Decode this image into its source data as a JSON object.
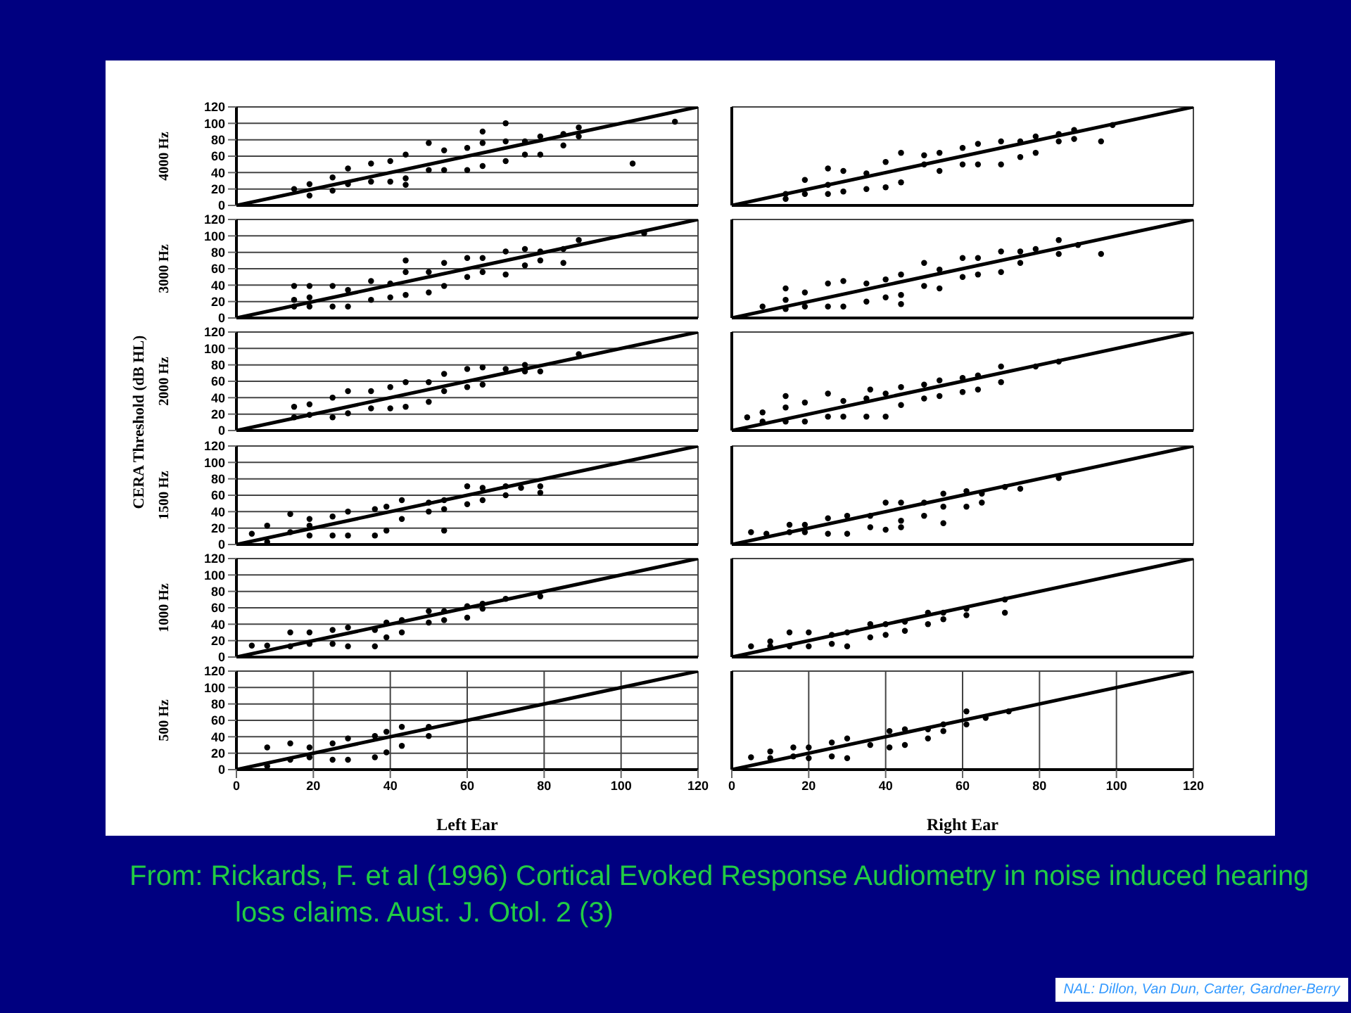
{
  "chart_data": [
    {
      "type": "scatter",
      "ylabel": "4000 Hz",
      "tick_labels": "y",
      "xlim": [
        0,
        120
      ],
      "xticks": [
        0,
        20,
        40,
        60,
        80,
        100,
        120
      ],
      "ylim": [
        0,
        120
      ],
      "yticks": [
        0,
        20,
        40,
        60,
        80,
        100,
        120
      ],
      "grid": true,
      "annotations": [
        "CERA Threshold (dB HL)",
        "From: Rickards, F. et al (1996) Cortical Evoked Response Audiometry in noise induced hearing loss claims. Aust. J. Otol. 2 (3)",
        "NAL: Dillon, Van Dun, Carter, Gardner-Berry"
      ],
      "series": [
        {
          "type": "scatter",
          "marker": "circle",
          "color": "#000000",
          "x": [
            15,
            19,
            19,
            25,
            25,
            29,
            29,
            35,
            35,
            40,
            40,
            44,
            44,
            44,
            50,
            50,
            54,
            54,
            60,
            60,
            64,
            64,
            64,
            70,
            70,
            70,
            75,
            75,
            79,
            79,
            85,
            85,
            89,
            89,
            103,
            114
          ],
          "values": [
            20,
            26,
            12,
            34,
            18,
            45,
            26,
            51,
            29,
            54,
            29,
            62,
            25,
            33,
            76,
            43,
            67,
            43,
            70,
            43,
            90,
            76,
            48,
            100,
            78,
            54,
            78,
            62,
            84,
            62,
            87,
            73,
            95,
            84,
            51,
            102
          ]
        },
        {
          "type": "line",
          "marker": "none",
          "color": "#000000",
          "x": [
            0,
            120
          ],
          "values": [
            0,
            120
          ]
        }
      ]
    },
    {
      "type": "scatter",
      "tick_labels": false,
      "xlim": [
        0,
        120
      ],
      "xticks": [
        0,
        20,
        40,
        60,
        80,
        100,
        120
      ],
      "ylim": [
        0,
        120
      ],
      "yticks": [
        0,
        20,
        40,
        60,
        80,
        100,
        120
      ],
      "grid": true,
      "series": [
        {
          "type": "scatter",
          "marker": "circle",
          "color": "#000000",
          "x": [
            14,
            14,
            19,
            19,
            25,
            25,
            25,
            29,
            29,
            35,
            35,
            40,
            40,
            44,
            44,
            50,
            50,
            54,
            54,
            60,
            60,
            64,
            64,
            70,
            70,
            75,
            75,
            79,
            79,
            85,
            85,
            89,
            89,
            96,
            99
          ],
          "values": [
            14,
            8,
            31,
            14,
            45,
            25,
            14,
            42,
            17,
            39,
            20,
            53,
            22,
            64,
            28,
            61,
            50,
            64,
            42,
            70,
            50,
            75,
            50,
            78,
            50,
            78,
            59,
            84,
            64,
            87,
            78,
            92,
            81,
            78,
            98
          ]
        },
        {
          "type": "line",
          "marker": "none",
          "color": "#000000",
          "x": [
            0,
            120
          ],
          "values": [
            0,
            120
          ]
        }
      ]
    },
    {
      "type": "scatter",
      "ylabel": "3000 Hz",
      "tick_labels": "y",
      "xlim": [
        0,
        120
      ],
      "xticks": [
        0,
        20,
        40,
        60,
        80,
        100,
        120
      ],
      "ylim": [
        0,
        120
      ],
      "yticks": [
        0,
        20,
        40,
        60,
        80,
        100,
        120
      ],
      "grid": true,
      "series": [
        {
          "type": "scatter",
          "marker": "circle",
          "color": "#000000",
          "x": [
            15,
            15,
            15,
            19,
            19,
            19,
            25,
            25,
            29,
            29,
            35,
            35,
            40,
            40,
            44,
            44,
            44,
            50,
            50,
            54,
            54,
            60,
            60,
            64,
            64,
            70,
            70,
            75,
            75,
            79,
            79,
            85,
            85,
            89,
            106
          ],
          "values": [
            39,
            22,
            14,
            39,
            25,
            14,
            39,
            14,
            34,
            14,
            45,
            22,
            42,
            25,
            70,
            56,
            28,
            56,
            31,
            67,
            39,
            73,
            50,
            73,
            56,
            81,
            53,
            84,
            64,
            70,
            81,
            67,
            84,
            95,
            103
          ]
        },
        {
          "type": "line",
          "marker": "none",
          "color": "#000000",
          "x": [
            0,
            120
          ],
          "values": [
            0,
            120
          ]
        }
      ]
    },
    {
      "type": "scatter",
      "tick_labels": false,
      "xlim": [
        0,
        120
      ],
      "xticks": [
        0,
        20,
        40,
        60,
        80,
        100,
        120
      ],
      "ylim": [
        0,
        120
      ],
      "yticks": [
        0,
        20,
        40,
        60,
        80,
        100,
        120
      ],
      "grid": true,
      "series": [
        {
          "type": "scatter",
          "marker": "circle",
          "color": "#000000",
          "x": [
            8,
            14,
            14,
            14,
            19,
            19,
            25,
            25,
            29,
            29,
            35,
            35,
            40,
            40,
            44,
            44,
            44,
            50,
            50,
            54,
            54,
            60,
            60,
            64,
            64,
            70,
            70,
            75,
            75,
            79,
            85,
            85,
            90,
            96
          ],
          "values": [
            14,
            36,
            22,
            11,
            31,
            14,
            42,
            14,
            45,
            14,
            42,
            20,
            47,
            25,
            53,
            28,
            17,
            67,
            39,
            59,
            36,
            73,
            50,
            73,
            53,
            81,
            56,
            81,
            67,
            84,
            95,
            78,
            89,
            78
          ]
        },
        {
          "type": "line",
          "marker": "none",
          "color": "#000000",
          "x": [
            0,
            120
          ],
          "values": [
            0,
            120
          ]
        }
      ]
    },
    {
      "type": "scatter",
      "ylabel": "2000 Hz",
      "tick_labels": "y",
      "xlim": [
        0,
        120
      ],
      "xticks": [
        0,
        20,
        40,
        60,
        80,
        100,
        120
      ],
      "ylim": [
        0,
        120
      ],
      "yticks": [
        0,
        20,
        40,
        60,
        80,
        100,
        120
      ],
      "grid": true,
      "series": [
        {
          "type": "scatter",
          "marker": "circle",
          "color": "#000000",
          "x": [
            15,
            15,
            19,
            19,
            25,
            25,
            29,
            29,
            35,
            35,
            40,
            40,
            44,
            44,
            50,
            50,
            54,
            54,
            60,
            60,
            64,
            64,
            70,
            75,
            75,
            79,
            89
          ],
          "values": [
            29,
            16,
            32,
            19,
            40,
            16,
            48,
            21,
            48,
            27,
            53,
            27,
            59,
            29,
            59,
            35,
            69,
            48,
            75,
            53,
            77,
            56,
            75,
            80,
            72,
            72,
            93
          ]
        },
        {
          "type": "line",
          "marker": "none",
          "color": "#000000",
          "x": [
            0,
            120
          ],
          "values": [
            0,
            120
          ]
        }
      ]
    },
    {
      "type": "scatter",
      "tick_labels": false,
      "xlim": [
        0,
        120
      ],
      "xticks": [
        0,
        20,
        40,
        60,
        80,
        100,
        120
      ],
      "ylim": [
        0,
        120
      ],
      "yticks": [
        0,
        20,
        40,
        60,
        80,
        100,
        120
      ],
      "grid": true,
      "series": [
        {
          "type": "scatter",
          "marker": "circle",
          "color": "#000000",
          "x": [
            4,
            8,
            8,
            14,
            14,
            14,
            19,
            19,
            25,
            25,
            29,
            29,
            35,
            35,
            36,
            40,
            40,
            44,
            44,
            50,
            50,
            54,
            54,
            60,
            60,
            64,
            64,
            70,
            70,
            79,
            85
          ],
          "values": [
            16,
            22,
            11,
            42,
            28,
            11,
            34,
            11,
            45,
            17,
            36,
            17,
            39,
            17,
            50,
            45,
            17,
            53,
            31,
            56,
            39,
            61,
            42,
            64,
            47,
            67,
            50,
            78,
            59,
            78,
            84
          ]
        },
        {
          "type": "line",
          "marker": "none",
          "color": "#000000",
          "x": [
            0,
            120
          ],
          "values": [
            0,
            120
          ]
        }
      ]
    },
    {
      "type": "scatter",
      "ylabel": "1500 Hz",
      "tick_labels": "y",
      "xlim": [
        0,
        120
      ],
      "xticks": [
        0,
        20,
        40,
        60,
        80,
        100,
        120
      ],
      "ylim": [
        0,
        120
      ],
      "yticks": [
        0,
        20,
        40,
        60,
        80,
        100,
        120
      ],
      "grid": true,
      "series": [
        {
          "type": "scatter",
          "marker": "circle",
          "color": "#000000",
          "x": [
            4,
            8,
            8,
            14,
            14,
            19,
            19,
            19,
            25,
            25,
            29,
            29,
            36,
            36,
            39,
            39,
            43,
            43,
            50,
            50,
            54,
            54,
            54,
            60,
            60,
            64,
            64,
            70,
            70,
            74,
            79,
            79
          ],
          "values": [
            13,
            23,
            3,
            37,
            15,
            31,
            23,
            11,
            34,
            11,
            40,
            11,
            43,
            11,
            46,
            17,
            54,
            31,
            51,
            40,
            54,
            43,
            17,
            71,
            49,
            69,
            54,
            71,
            60,
            69,
            71,
            63
          ]
        },
        {
          "type": "line",
          "marker": "none",
          "color": "#000000",
          "x": [
            0,
            120
          ],
          "values": [
            0,
            120
          ]
        }
      ]
    },
    {
      "type": "scatter",
      "tick_labels": false,
      "xlim": [
        0,
        120
      ],
      "xticks": [
        0,
        20,
        40,
        60,
        80,
        100,
        120
      ],
      "ylim": [
        0,
        120
      ],
      "yticks": [
        0,
        20,
        40,
        60,
        80,
        100,
        120
      ],
      "grid": true,
      "series": [
        {
          "type": "scatter",
          "marker": "circle",
          "color": "#000000",
          "x": [
            5,
            9,
            15,
            15,
            19,
            19,
            25,
            25,
            30,
            30,
            36,
            36,
            40,
            40,
            44,
            44,
            44,
            50,
            50,
            55,
            55,
            55,
            61,
            61,
            65,
            65,
            71,
            75,
            85
          ],
          "values": [
            15,
            13,
            24,
            15,
            24,
            15,
            32,
            13,
            35,
            13,
            35,
            21,
            51,
            18,
            51,
            29,
            21,
            51,
            35,
            62,
            46,
            26,
            65,
            46,
            62,
            51,
            70,
            68,
            81
          ]
        },
        {
          "type": "line",
          "marker": "none",
          "color": "#000000",
          "x": [
            0,
            120
          ],
          "values": [
            0,
            120
          ]
        }
      ]
    },
    {
      "type": "scatter",
      "ylabel": "1000 Hz",
      "tick_labels": "y",
      "xlim": [
        0,
        120
      ],
      "xticks": [
        0,
        20,
        40,
        60,
        80,
        100,
        120
      ],
      "ylim": [
        0,
        120
      ],
      "yticks": [
        0,
        20,
        40,
        60,
        80,
        100,
        120
      ],
      "grid": true,
      "series": [
        {
          "type": "scatter",
          "marker": "circle",
          "color": "#000000",
          "x": [
            4,
            8,
            14,
            14,
            19,
            19,
            25,
            25,
            29,
            29,
            36,
            36,
            39,
            39,
            43,
            43,
            50,
            50,
            54,
            54,
            60,
            60,
            64,
            64,
            70,
            79
          ],
          "values": [
            14,
            14,
            30,
            13,
            30,
            16,
            33,
            16,
            36,
            13,
            33,
            13,
            42,
            24,
            45,
            30,
            56,
            42,
            56,
            45,
            62,
            48,
            65,
            59,
            71,
            74
          ]
        },
        {
          "type": "line",
          "marker": "none",
          "color": "#000000",
          "x": [
            0,
            120
          ],
          "values": [
            0,
            120
          ]
        }
      ]
    },
    {
      "type": "scatter",
      "tick_labels": false,
      "xlim": [
        0,
        120
      ],
      "xticks": [
        0,
        20,
        40,
        60,
        80,
        100,
        120
      ],
      "ylim": [
        0,
        120
      ],
      "yticks": [
        0,
        20,
        40,
        60,
        80,
        100,
        120
      ],
      "grid": true,
      "series": [
        {
          "type": "scatter",
          "marker": "circle",
          "color": "#000000",
          "x": [
            5,
            10,
            10,
            15,
            15,
            20,
            20,
            26,
            26,
            30,
            30,
            36,
            36,
            40,
            40,
            45,
            45,
            51,
            51,
            55,
            55,
            61,
            61,
            71,
            71
          ],
          "values": [
            13,
            19,
            13,
            30,
            13,
            30,
            13,
            27,
            16,
            30,
            13,
            40,
            24,
            40,
            27,
            43,
            32,
            54,
            40,
            54,
            46,
            59,
            51,
            70,
            54
          ]
        },
        {
          "type": "line",
          "marker": "none",
          "color": "#000000",
          "x": [
            0,
            120
          ],
          "values": [
            0,
            120
          ]
        }
      ]
    },
    {
      "type": "scatter",
      "ylabel": "500 Hz",
      "xlabel": "Left Ear",
      "xlim": [
        0,
        120
      ],
      "xticks": [
        0,
        20,
        40,
        60,
        80,
        100,
        120
      ],
      "ylim": [
        0,
        120
      ],
      "yticks": [
        0,
        20,
        40,
        60,
        80,
        100,
        120
      ],
      "grid": true,
      "series": [
        {
          "type": "scatter",
          "marker": "circle",
          "color": "#000000",
          "x": [
            8,
            8,
            14,
            14,
            19,
            19,
            25,
            25,
            29,
            29,
            36,
            36,
            39,
            39,
            43,
            43,
            50,
            50
          ],
          "values": [
            27,
            4,
            32,
            12,
            27,
            15,
            32,
            12,
            38,
            12,
            41,
            15,
            46,
            21,
            52,
            29,
            52,
            41
          ]
        },
        {
          "type": "line",
          "marker": "none",
          "color": "#000000",
          "x": [
            0,
            120
          ],
          "values": [
            0,
            120
          ]
        }
      ]
    },
    {
      "type": "scatter",
      "xlabel": "Right Ear",
      "tick_labels": "x",
      "xlim": [
        0,
        120
      ],
      "xticks": [
        0,
        20,
        40,
        60,
        80,
        100,
        120
      ],
      "ylim": [
        0,
        120
      ],
      "yticks": [
        0,
        20,
        40,
        60,
        80,
        100,
        120
      ],
      "grid": true,
      "series": [
        {
          "type": "scatter",
          "marker": "circle",
          "color": "#000000",
          "x": [
            5,
            10,
            10,
            16,
            16,
            20,
            20,
            26,
            26,
            30,
            30,
            36,
            41,
            41,
            45,
            45,
            51,
            51,
            55,
            55,
            61,
            61,
            66,
            72
          ],
          "values": [
            15,
            22,
            14,
            27,
            16,
            27,
            14,
            33,
            16,
            38,
            14,
            30,
            47,
            27,
            49,
            30,
            49,
            38,
            55,
            47,
            71,
            55,
            63,
            71
          ]
        },
        {
          "type": "line",
          "marker": "none",
          "color": "#000000",
          "x": [
            0,
            120
          ],
          "values": [
            0,
            120
          ]
        }
      ]
    }
  ]
}
